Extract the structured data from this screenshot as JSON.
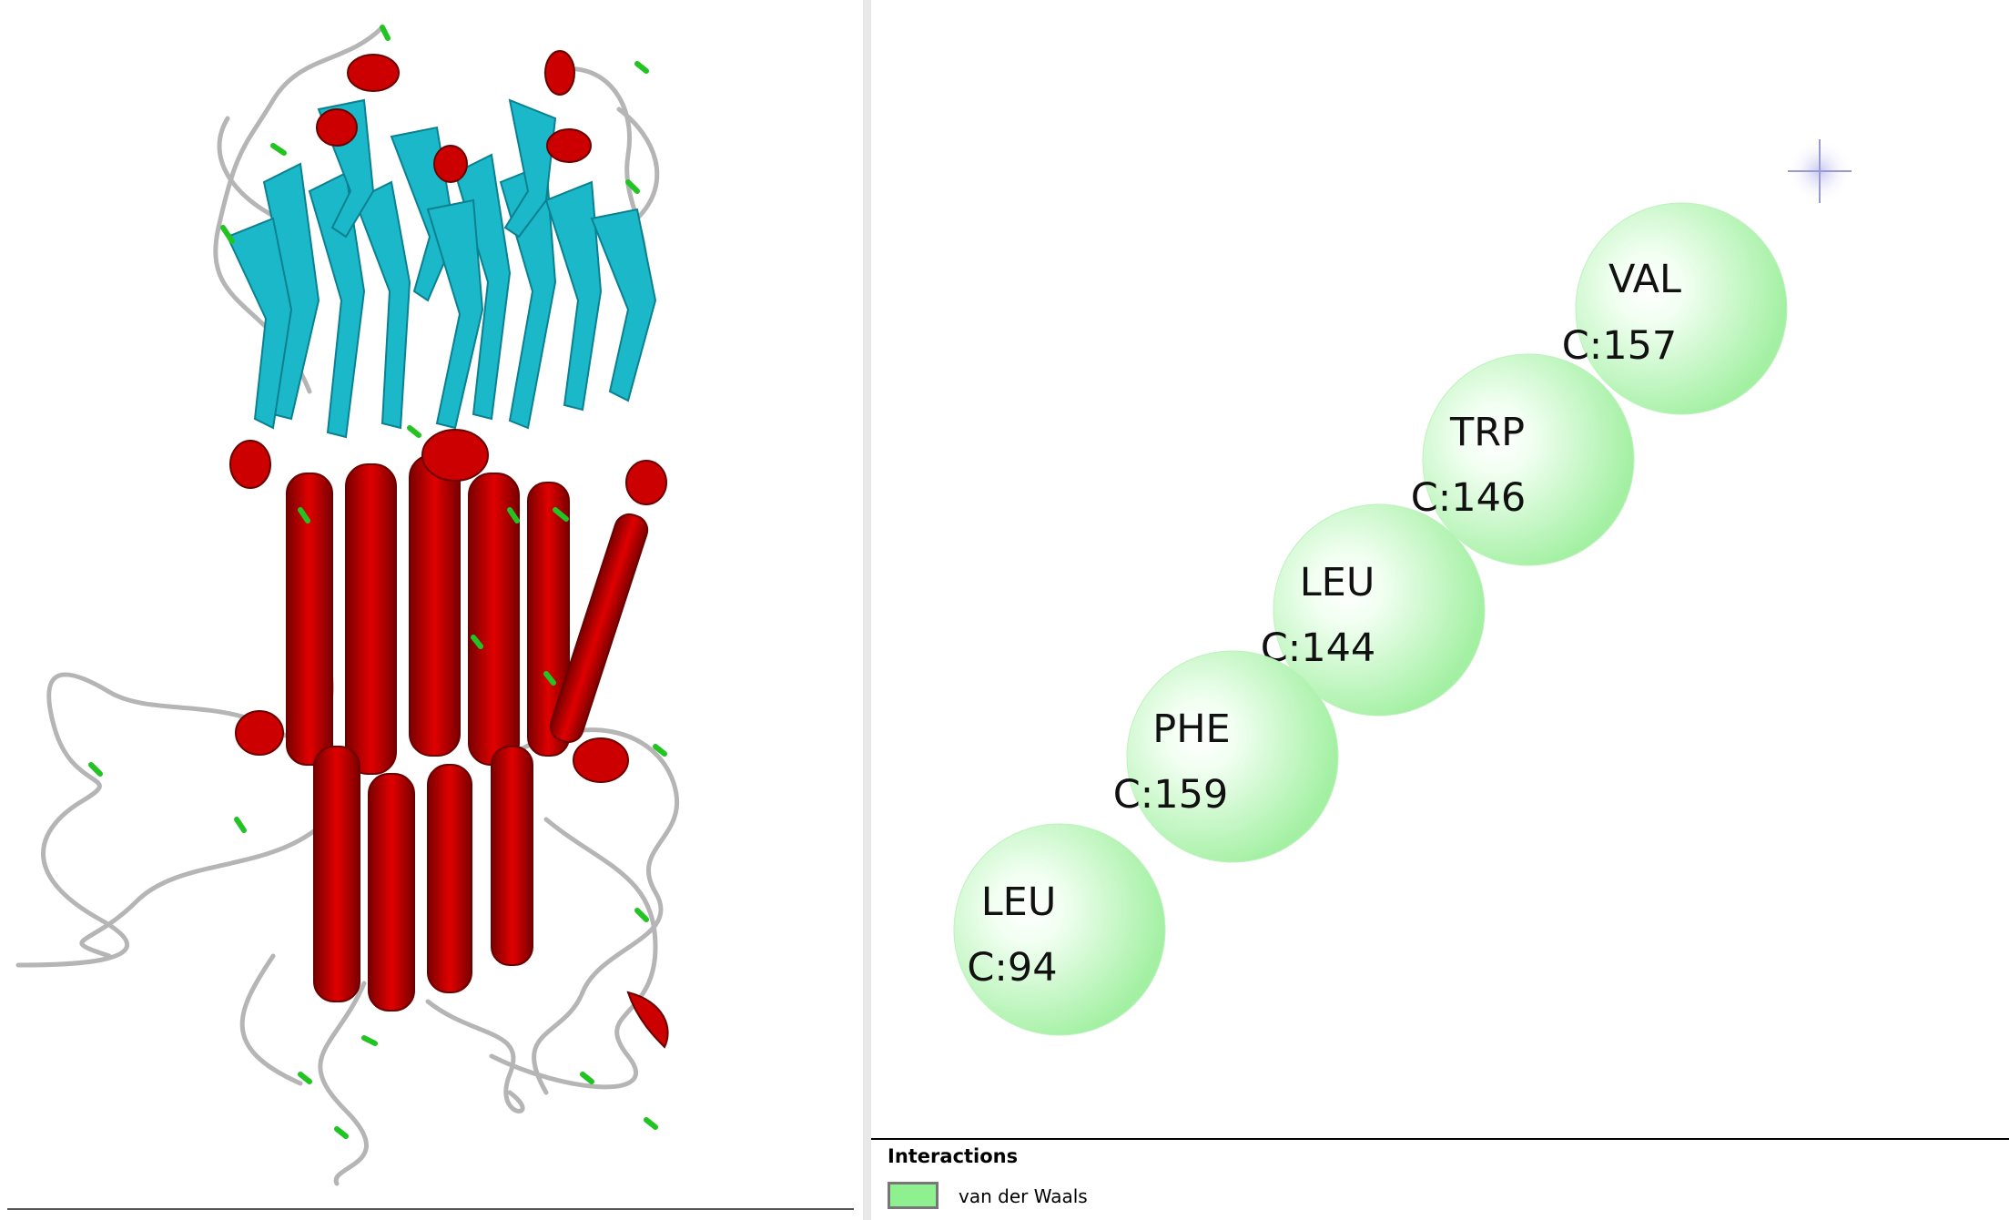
{
  "legend": {
    "title": "Interactions",
    "items": [
      {
        "label": "van der Waals",
        "color": "#8ff08f"
      }
    ]
  },
  "residues": [
    {
      "name": "VAL",
      "id": "C:157",
      "color": "#8ff08f"
    },
    {
      "name": "TRP",
      "id": "C:146",
      "color": "#8ff08f"
    },
    {
      "name": "LEU",
      "id": "C:144",
      "color": "#8ff08f"
    },
    {
      "name": "PHE",
      "id": "C:159",
      "color": "#8ff08f"
    },
    {
      "name": "LEU",
      "id": "C:94",
      "color": "#8ff08f"
    }
  ],
  "structure_colors": {
    "helix": "#cc0000",
    "sheet": "#1ab8c8",
    "coil": "#b8b8b8",
    "turn": "#22c422"
  }
}
